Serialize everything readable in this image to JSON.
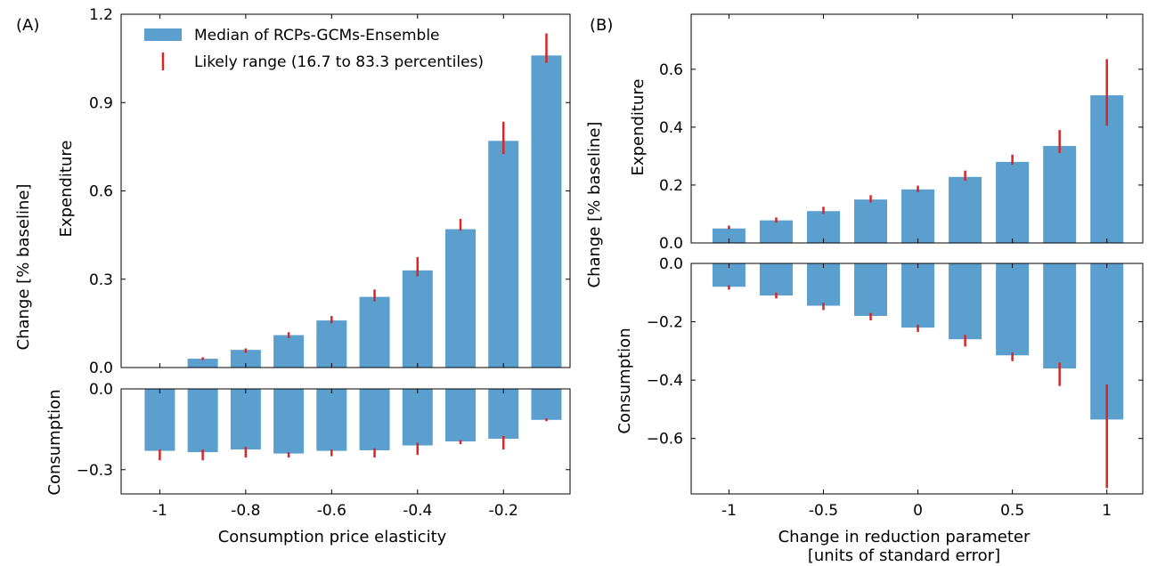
{
  "colors": {
    "bar": "#5b9fcf",
    "error": "#d62728",
    "axis": "#000000"
  },
  "legend": {
    "bar_label": "Median of RCPs-GCMs-Ensemble",
    "range_label": "Likely range (16.7 to 83.3 percentiles)",
    "placement": "top-left of panel A"
  },
  "chart_data": [
    {
      "panel": "(A)",
      "type": "bar",
      "shared_ylabel": "Change [% baseline]",
      "xlabel": "Consumption price elasticity",
      "x": [
        -1,
        -0.9,
        -0.8,
        -0.7,
        -0.6,
        -0.5,
        -0.4,
        -0.3,
        -0.2,
        -0.1
      ],
      "xticks": [
        -1,
        -0.8,
        -0.6,
        -0.4,
        -0.2
      ],
      "xtick_labels": [
        "-1",
        "-0.8",
        "-0.6",
        "-0.4",
        "-0.2"
      ],
      "xlim": [
        -1.09,
        -0.045
      ],
      "subplots": [
        {
          "ylabel": "Expenditure",
          "ylim": [
            0,
            1.2
          ],
          "yticks": [
            0,
            0.3,
            0.6,
            0.9,
            1.2
          ],
          "ytick_labels": [
            "0.0",
            "0.3",
            "0.6",
            "0.9",
            "1.2"
          ],
          "values": [
            0.0,
            0.03,
            0.06,
            0.11,
            0.16,
            0.24,
            0.33,
            0.47,
            0.77,
            1.06
          ],
          "low": [
            0.0,
            0.025,
            0.05,
            0.1,
            0.15,
            0.225,
            0.31,
            0.465,
            0.725,
            1.035
          ],
          "high": [
            0.0,
            0.035,
            0.065,
            0.12,
            0.175,
            0.265,
            0.375,
            0.505,
            0.835,
            1.135
          ]
        },
        {
          "ylabel": "Consumption",
          "ylim": [
            -0.39,
            0
          ],
          "yticks": [
            0,
            -0.3
          ],
          "ytick_labels": [
            "0.0",
            "−0.3"
          ],
          "values": [
            -0.23,
            -0.235,
            -0.225,
            -0.24,
            -0.23,
            -0.228,
            -0.21,
            -0.195,
            -0.185,
            -0.115
          ],
          "low": [
            -0.265,
            -0.265,
            -0.255,
            -0.255,
            -0.25,
            -0.255,
            -0.245,
            -0.205,
            -0.225,
            -0.12
          ],
          "high": [
            -0.225,
            -0.225,
            -0.215,
            -0.235,
            -0.225,
            -0.22,
            -0.2,
            -0.19,
            -0.175,
            -0.11
          ]
        }
      ]
    },
    {
      "panel": "(B)",
      "type": "bar",
      "shared_ylabel": "Change [% baseline]",
      "xlabel_lines": [
        "Change in reduction parameter",
        "[units of standard error]"
      ],
      "x": [
        -1,
        -0.75,
        -0.5,
        -0.25,
        0,
        0.25,
        0.5,
        0.75,
        1
      ],
      "xticks": [
        -1,
        -0.5,
        0,
        0.5,
        1
      ],
      "xtick_labels": [
        "-1",
        "-0.5",
        "0",
        "0.5",
        "1"
      ],
      "xlim": [
        -1.2,
        1.19
      ],
      "subplots": [
        {
          "ylabel": "Expenditure",
          "ylim": [
            0,
            0.79
          ],
          "yticks": [
            0,
            0.2,
            0.4,
            0.6
          ],
          "ytick_labels": [
            "0.0",
            "0.2",
            "0.4",
            "0.6"
          ],
          "values": [
            0.05,
            0.078,
            0.11,
            0.15,
            0.185,
            0.228,
            0.28,
            0.335,
            0.51
          ],
          "low": [
            0.047,
            0.07,
            0.1,
            0.14,
            0.175,
            0.215,
            0.27,
            0.31,
            0.405
          ],
          "high": [
            0.06,
            0.088,
            0.125,
            0.165,
            0.198,
            0.25,
            0.305,
            0.39,
            0.635
          ]
        },
        {
          "ylabel": "Consumption",
          "ylim": [
            -0.79,
            0
          ],
          "yticks": [
            0,
            -0.2,
            -0.4,
            -0.6
          ],
          "ytick_labels": [
            "0.0",
            "−0.2",
            "−0.4",
            "−0.6"
          ],
          "values": [
            -0.08,
            -0.11,
            -0.145,
            -0.18,
            -0.22,
            -0.26,
            -0.315,
            -0.36,
            -0.535
          ],
          "low": [
            -0.09,
            -0.12,
            -0.16,
            -0.195,
            -0.235,
            -0.285,
            -0.335,
            -0.42,
            -0.77
          ],
          "high": [
            -0.075,
            -0.1,
            -0.135,
            -0.17,
            -0.21,
            -0.245,
            -0.305,
            -0.34,
            -0.415
          ]
        }
      ]
    }
  ]
}
